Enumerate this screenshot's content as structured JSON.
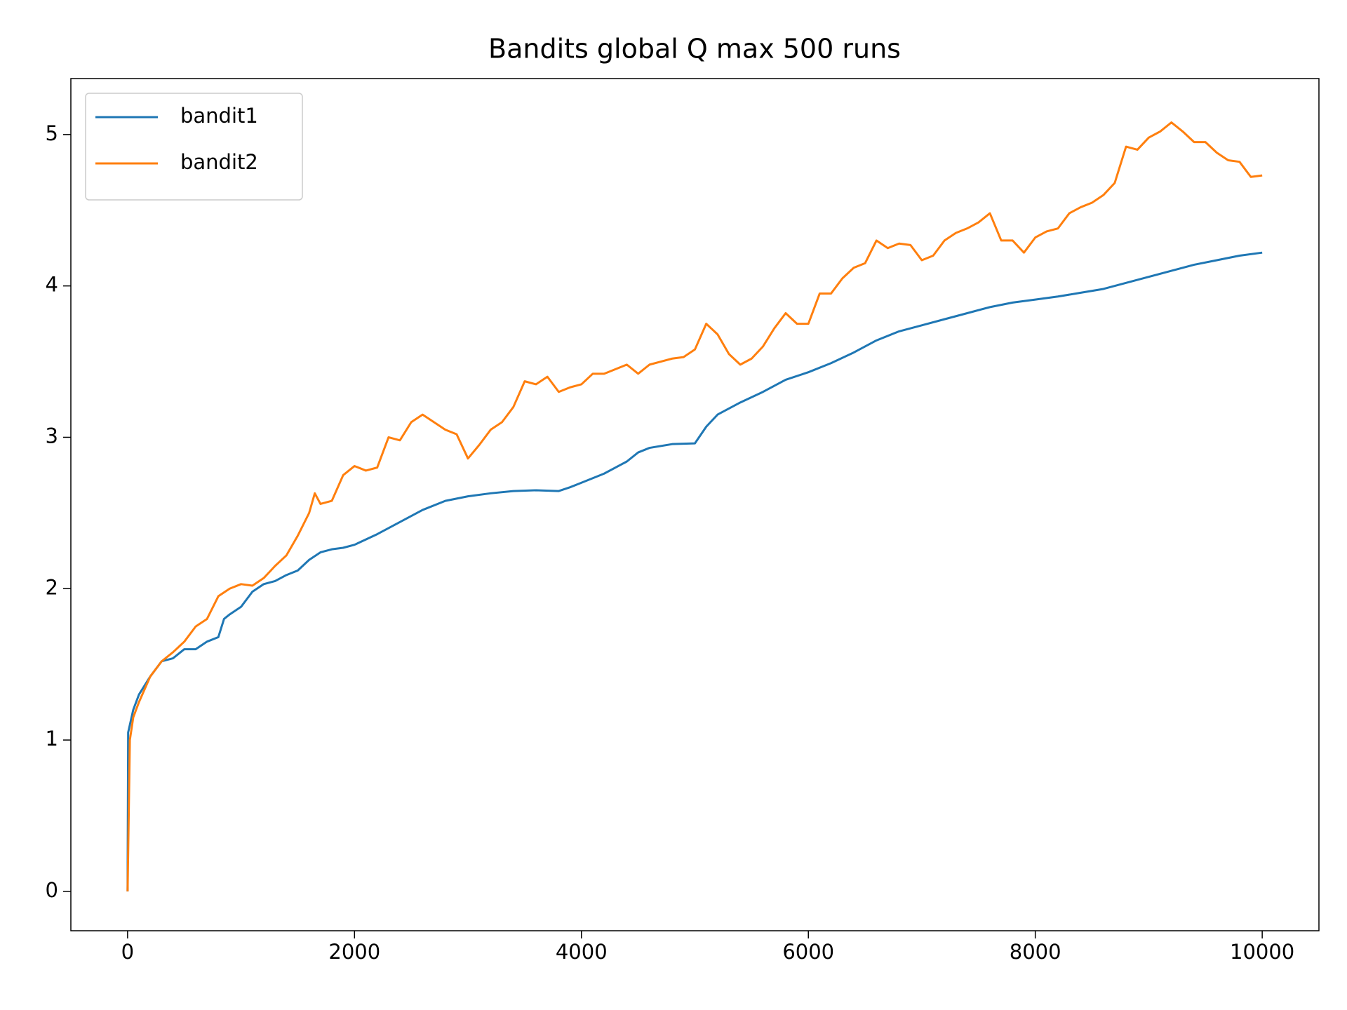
{
  "chart_data": {
    "type": "line",
    "title": "Bandits global Q max 500 runs",
    "xlim": [
      -500,
      10500
    ],
    "xticks": [
      0,
      2000,
      4000,
      6000,
      8000,
      10000
    ],
    "ylim": [
      -0.26,
      5.37
    ],
    "yticks": [
      0,
      1,
      2,
      3,
      4,
      5
    ],
    "legend": "upper left",
    "grid": false,
    "series": [
      {
        "name": "bandit1",
        "color": "#1f77b4",
        "x": [
          0,
          5,
          50,
          100,
          200,
          300,
          400,
          500,
          600,
          700,
          800,
          850,
          900,
          1000,
          1100,
          1200,
          1300,
          1400,
          1500,
          1600,
          1700,
          1800,
          1900,
          2000,
          2200,
          2400,
          2600,
          2800,
          3000,
          3200,
          3400,
          3600,
          3800,
          3900,
          4000,
          4200,
          4400,
          4500,
          4600,
          4800,
          5000,
          5100,
          5200,
          5400,
          5600,
          5800,
          6000,
          6200,
          6400,
          6600,
          6800,
          7000,
          7200,
          7400,
          7600,
          7800,
          8000,
          8200,
          8400,
          8600,
          8800,
          9000,
          9200,
          9400,
          9600,
          9800,
          10000
        ],
        "values": [
          0,
          1.05,
          1.2,
          1.3,
          1.42,
          1.52,
          1.54,
          1.6,
          1.6,
          1.65,
          1.68,
          1.8,
          1.83,
          1.88,
          1.98,
          2.03,
          2.05,
          2.09,
          2.12,
          2.19,
          2.24,
          2.26,
          2.27,
          2.29,
          2.36,
          2.44,
          2.52,
          2.58,
          2.61,
          2.63,
          2.645,
          2.65,
          2.645,
          2.67,
          2.7,
          2.76,
          2.84,
          2.9,
          2.93,
          2.955,
          2.96,
          3.07,
          3.15,
          3.23,
          3.3,
          3.38,
          3.43,
          3.49,
          3.56,
          3.64,
          3.7,
          3.74,
          3.78,
          3.82,
          3.86,
          3.89,
          3.91,
          3.93,
          3.955,
          3.98,
          4.02,
          4.06,
          4.1,
          4.14,
          4.17,
          4.2,
          4.22
        ]
      },
      {
        "name": "bandit2",
        "color": "#ff7f0e",
        "x": [
          0,
          20,
          50,
          100,
          200,
          300,
          400,
          500,
          600,
          700,
          800,
          900,
          1000,
          1100,
          1200,
          1300,
          1400,
          1500,
          1600,
          1650,
          1700,
          1800,
          1900,
          2000,
          2100,
          2200,
          2300,
          2400,
          2500,
          2600,
          2700,
          2800,
          2900,
          3000,
          3100,
          3200,
          3300,
          3400,
          3500,
          3600,
          3700,
          3800,
          3900,
          4000,
          4100,
          4200,
          4300,
          4400,
          4500,
          4600,
          4700,
          4800,
          4900,
          5000,
          5100,
          5200,
          5300,
          5400,
          5500,
          5600,
          5700,
          5800,
          5900,
          6000,
          6100,
          6200,
          6300,
          6400,
          6500,
          6600,
          6700,
          6800,
          6900,
          7000,
          7100,
          7200,
          7300,
          7400,
          7500,
          7600,
          7700,
          7800,
          7900,
          8000,
          8100,
          8200,
          8300,
          8400,
          8500,
          8600,
          8700,
          8800,
          8900,
          9000,
          9100,
          9200,
          9300,
          9400,
          9500,
          9600,
          9700,
          9800,
          9900,
          10000
        ],
        "values": [
          0,
          1.0,
          1.15,
          1.25,
          1.42,
          1.52,
          1.58,
          1.65,
          1.75,
          1.8,
          1.95,
          2.0,
          2.03,
          2.02,
          2.07,
          2.15,
          2.22,
          2.35,
          2.5,
          2.63,
          2.56,
          2.58,
          2.75,
          2.81,
          2.78,
          2.8,
          3.0,
          2.98,
          3.1,
          3.15,
          3.1,
          3.05,
          3.02,
          2.86,
          2.95,
          3.05,
          3.1,
          3.2,
          3.37,
          3.35,
          3.4,
          3.3,
          3.33,
          3.35,
          3.42,
          3.42,
          3.45,
          3.48,
          3.42,
          3.48,
          3.5,
          3.52,
          3.53,
          3.58,
          3.75,
          3.68,
          3.55,
          3.48,
          3.52,
          3.6,
          3.72,
          3.82,
          3.75,
          3.75,
          3.95,
          3.95,
          4.05,
          4.12,
          4.15,
          4.3,
          4.25,
          4.28,
          4.27,
          4.17,
          4.2,
          4.3,
          4.35,
          4.38,
          4.42,
          4.48,
          4.3,
          4.3,
          4.22,
          4.32,
          4.36,
          4.38,
          4.48,
          4.52,
          4.55,
          4.6,
          4.68,
          4.92,
          4.9,
          4.98,
          5.02,
          5.08,
          5.02,
          4.95,
          4.95,
          4.88,
          4.83,
          4.82,
          4.72,
          4.73
        ]
      }
    ]
  }
}
